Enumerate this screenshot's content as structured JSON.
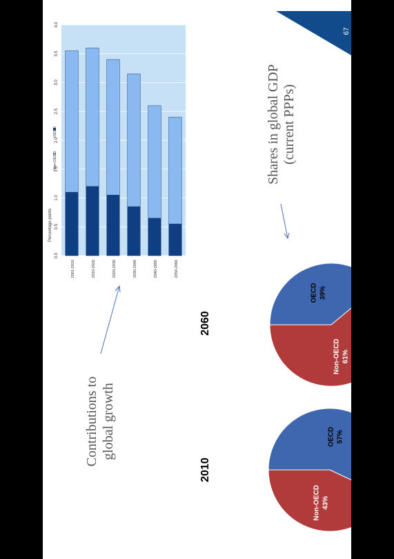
{
  "page": {
    "number": "67"
  },
  "labels": {
    "contributions_line1": "Contributions to",
    "contributions_line2": "global growth",
    "shares_line1": "Shares in global GDP",
    "shares_line2": "(current PPPs)"
  },
  "colors": {
    "oecd_dark": "#0f3e83",
    "non_oecd_light": "#8ab8f0",
    "chart_bg": "#c6e0f6",
    "pie_blue": "#3f67b0",
    "pie_red": "#b13a3a",
    "triangle": "#124b8c"
  },
  "chart_data": [
    {
      "type": "bar",
      "stacked": true,
      "ylabel": "Percentage points",
      "ylim": [
        0,
        4
      ],
      "yticks": [
        "0.0",
        "0.5",
        "1.0",
        "1.5",
        "2.0",
        "2.5",
        "3.0",
        "3.5",
        "4.0"
      ],
      "categories": [
        "2001-2010",
        "2010-2020",
        "2020-2030",
        "2030-2040",
        "2040-2050",
        "2050-2060"
      ],
      "series": [
        {
          "name": "OECD",
          "color": "#0f3e83",
          "values": [
            1.1,
            1.2,
            1.05,
            0.85,
            0.65,
            0.55
          ]
        },
        {
          "name": "Non-OECD",
          "color": "#8ab8f0",
          "values": [
            2.45,
            2.4,
            2.35,
            2.3,
            1.95,
            1.85
          ]
        }
      ],
      "legend": [
        "Non-OECD",
        "OECD"
      ],
      "grid": true
    },
    {
      "type": "pie",
      "title": "2010",
      "slices": [
        {
          "label": "OECD",
          "value": 57,
          "text": "57%",
          "color": "#3f67b0"
        },
        {
          "label": "Non-OECD",
          "value": 43,
          "text": "43%",
          "color": "#b13a3a"
        }
      ]
    },
    {
      "type": "pie",
      "title": "2060",
      "slices": [
        {
          "label": "OECD",
          "value": 39,
          "text": "39%",
          "color": "#3f67b0"
        },
        {
          "label": "Non-OECD",
          "value": 61,
          "text": "61%",
          "color": "#b13a3a"
        }
      ]
    }
  ]
}
